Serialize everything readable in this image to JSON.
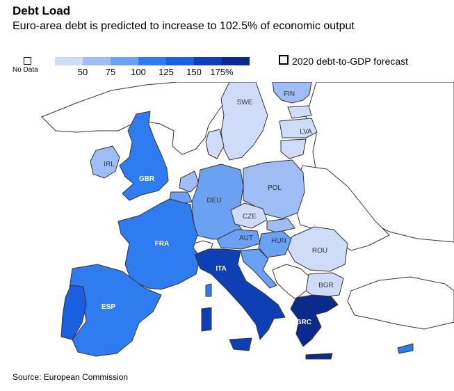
{
  "header": {
    "title": "Debt Load",
    "subtitle": "Euro-area debt is predicted to increase to 102.5% of economic output"
  },
  "legend": {
    "no_data_label": "No Data",
    "scale_colors": [
      "#cfdcf7",
      "#9fbdf4",
      "#6aa1f2",
      "#2f7cf0",
      "#1a5fe0",
      "#0f3fb5",
      "#0b2a8c"
    ],
    "ticks": [
      "50",
      "75",
      "100",
      "125",
      "150",
      "175%"
    ],
    "forecast_label": "2020 debt-to-GDP forecast"
  },
  "map": {
    "colors": {
      "no_data": "#ffffff",
      "border": "#333333",
      "bucket_1": "#cfdcf7",
      "bucket_2": "#9fbdf4",
      "bucket_3": "#6aa1f2",
      "bucket_4": "#2f7cf0",
      "bucket_5": "#1a5fe0",
      "bucket_6": "#0f3fb5",
      "bucket_7": "#0b2a8c"
    },
    "labels": {
      "fin": "FIN",
      "swe": "SWE",
      "lva": "LVA",
      "irl": "IRL",
      "gbr": "GBR",
      "pol": "POL",
      "deu": "DEU",
      "cze": "CZE",
      "aut": "AUT",
      "hun": "HUN",
      "fra": "FRA",
      "rou": "ROU",
      "ita": "ITA",
      "bgr": "BGR",
      "esp": "ESP",
      "grc": "GRC"
    }
  },
  "footer": {
    "source": "Source: European Commission"
  }
}
